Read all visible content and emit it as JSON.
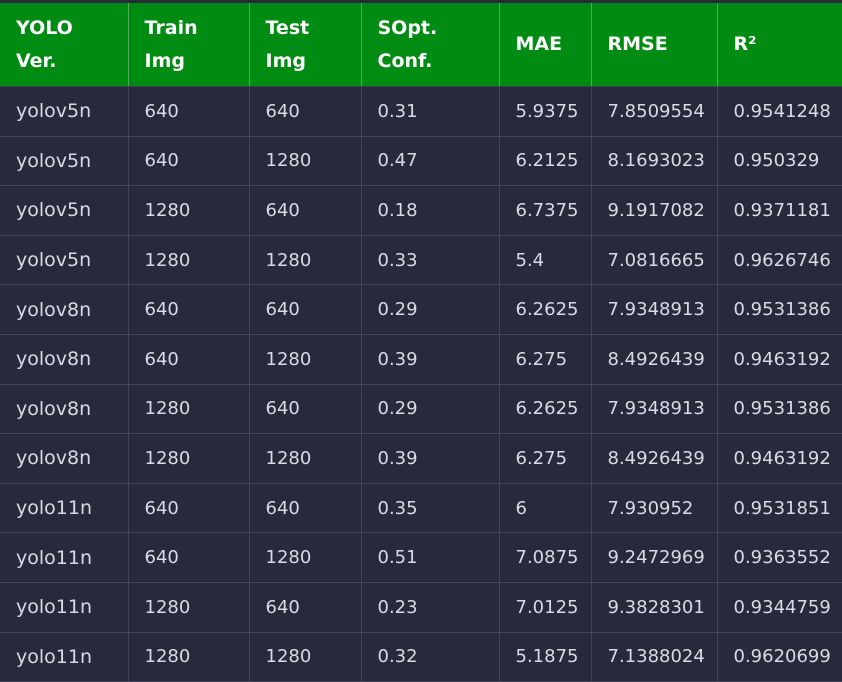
{
  "table": {
    "headers": [
      "YOLO\nVer.",
      "Train\nImg",
      "Test\nImg",
      "SOpt.\nConf.",
      "MAE",
      "RMSE",
      "R²"
    ],
    "rows": [
      [
        "yolov5n",
        "640",
        "640",
        "0.31",
        "5.9375",
        "7.8509554",
        "0.9541248"
      ],
      [
        "yolov5n",
        "640",
        "1280",
        "0.47",
        "6.2125",
        "8.1693023",
        "0.950329"
      ],
      [
        "yolov5n",
        "1280",
        "640",
        "0.18",
        "6.7375",
        "9.1917082",
        "0.9371181"
      ],
      [
        "yolov5n",
        "1280",
        "1280",
        "0.33",
        "5.4",
        "7.0816665",
        "0.9626746"
      ],
      [
        "yolov8n",
        "640",
        "640",
        "0.29",
        "6.2625",
        "7.9348913",
        "0.9531386"
      ],
      [
        "yolov8n",
        "640",
        "1280",
        "0.39",
        "6.275",
        "8.4926439",
        "0.9463192"
      ],
      [
        "yolov8n",
        "1280",
        "640",
        "0.29",
        "6.2625",
        "7.9348913",
        "0.9531386"
      ],
      [
        "yolov8n",
        "1280",
        "1280",
        "0.39",
        "6.275",
        "8.4926439",
        "0.9463192"
      ],
      [
        "yolo11n",
        "640",
        "640",
        "0.35",
        "6",
        "7.930952",
        "0.9531851"
      ],
      [
        "yolo11n",
        "640",
        "1280",
        "0.51",
        "7.0875",
        "9.2472969",
        "0.9363552"
      ],
      [
        "yolo11n",
        "1280",
        "640",
        "0.23",
        "7.0125",
        "9.3828301",
        "0.9344759"
      ],
      [
        "yolo11n",
        "1280",
        "1280",
        "0.32",
        "5.1875",
        "7.1388024",
        "0.9620699"
      ]
    ]
  },
  "colors": {
    "header_bg": "#008b12",
    "body_bg": "#262a3b",
    "text": "#d8dbe6",
    "grid": "#40455a"
  }
}
